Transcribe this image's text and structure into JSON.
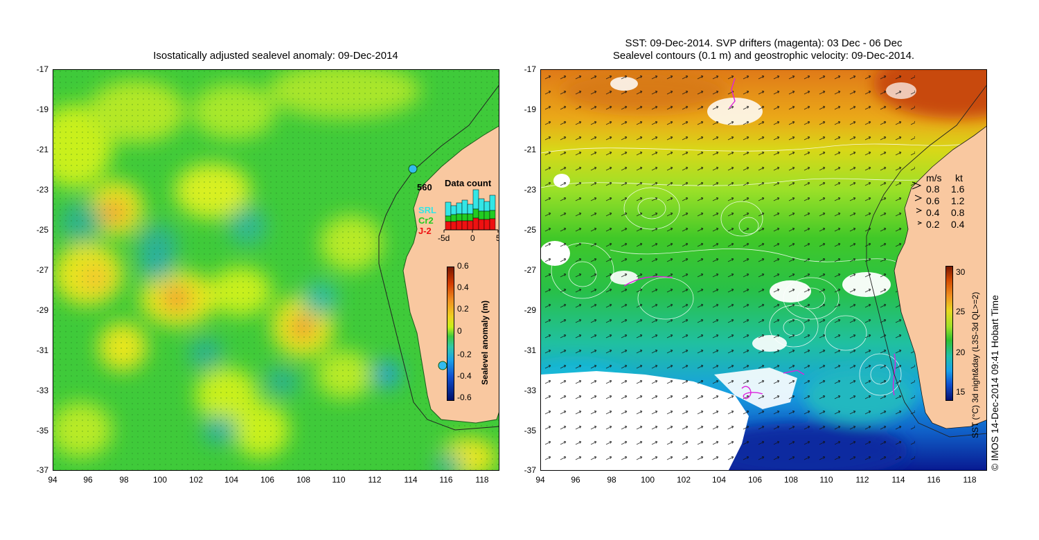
{
  "left_panel": {
    "title": "Isostatically adjusted sealevel anomaly: 09-Dec-2014",
    "y_ticks": [
      "-17",
      "-19",
      "-21",
      "-23",
      "-25",
      "-27",
      "-29",
      "-31",
      "-33",
      "-35",
      "-37"
    ],
    "x_ticks": [
      "94",
      "96",
      "98",
      "100",
      "102",
      "104",
      "106",
      "108",
      "110",
      "112",
      "114",
      "116",
      "118"
    ],
    "colorbar_label": "Sealevel anomaly (m)",
    "colorbar_ticks": [
      "0.6",
      "0.4",
      "0.2",
      "0",
      "-0.2",
      "-0.4",
      "-0.6"
    ],
    "data_count": {
      "title": "Data count",
      "max_label": "560",
      "x_ticks": [
        "-5d",
        "0",
        "5"
      ],
      "legend": [
        {
          "label": "SRL",
          "color": "#33e6e6"
        },
        {
          "label": "Cr2",
          "color": "#22cc22"
        },
        {
          "label": "J-2",
          "color": "#ee1111"
        }
      ]
    },
    "colors": {
      "land": "#f9c8a0",
      "ocean_base": "#3fca3a"
    }
  },
  "right_panel": {
    "title_line1": "SST: 09-Dec-2014. SVP drifters (magenta): 03 Dec - 06 Dec",
    "title_line2": "Sealevel contours (0.1 m) and geostrophic velocity: 09-Dec-2014.",
    "y_ticks": [
      "-17",
      "-19",
      "-21",
      "-23",
      "-25",
      "-27",
      "-29",
      "-31",
      "-33",
      "-35",
      "-37"
    ],
    "x_ticks": [
      "94",
      "96",
      "98",
      "100",
      "102",
      "104",
      "106",
      "108",
      "110",
      "112",
      "114",
      "116",
      "118"
    ],
    "speed_legend": {
      "header_ms": "m/s",
      "header_kt": "kt",
      "rows": [
        {
          "ms": "0.8",
          "kt": "1.6"
        },
        {
          "ms": "0.6",
          "kt": "1.2"
        },
        {
          "ms": "0.4",
          "kt": "0.8"
        },
        {
          "ms": "0.2",
          "kt": "0.4"
        }
      ]
    },
    "colorbar_label": "SST (°C) 3d night&day (L3S-3d QL>=2)",
    "colorbar_ticks": [
      "30",
      "25",
      "20",
      "15"
    ],
    "colors": {
      "land": "#f9c8a0",
      "drifters": "#dd22dd"
    }
  },
  "credit": "© IMOS 14-Dec-2014 09:41 Hobart Time"
}
